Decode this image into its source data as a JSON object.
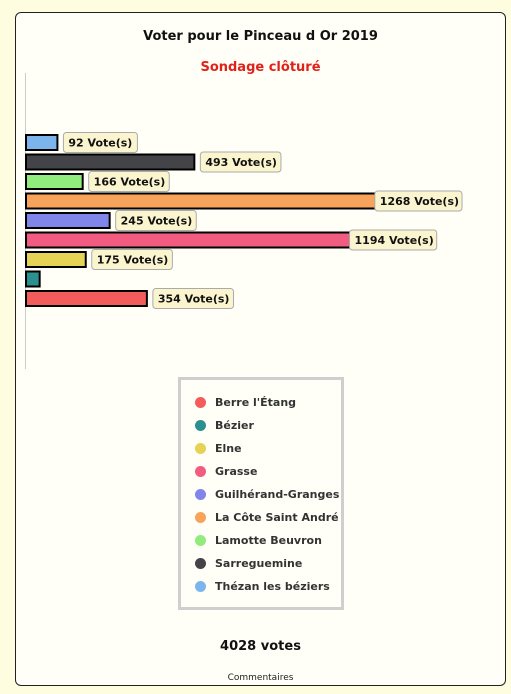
{
  "poll": {
    "title": "Voter pour le Pinceau d Or 2019",
    "status": "Sondage clôturé",
    "total": "4028 votes",
    "comments_link": "Commentaires"
  },
  "chart_data": {
    "type": "bar",
    "orientation": "horizontal",
    "categories": [
      "Thézan les béziers",
      "Sarreguemine",
      "Lamotte Beuvron",
      "La Côte Saint André",
      "Guilhérand-Granges",
      "Grasse",
      "Elne",
      "Bézier",
      "Berre l'Étang"
    ],
    "values": [
      92,
      493,
      166,
      1268,
      245,
      1194,
      175,
      40,
      354
    ],
    "value_labels": [
      "92 Vote(s)",
      "493 Vote(s)",
      "166 Vote(s)",
      "1268 Vote(s)",
      "245 Vote(s)",
      "1194 Vote(s)",
      "175 Vote(s)",
      "",
      "354 Vote(s)"
    ],
    "colors": [
      "#7cb5ec",
      "#434348",
      "#90ed7d",
      "#f7a35c",
      "#8085e9",
      "#f15c80",
      "#e4d354",
      "#2b908f",
      "#f45b5b"
    ],
    "xlim": [
      0,
      1268
    ],
    "legend_position": "bottom-center",
    "grid": false
  },
  "legend": [
    {
      "label": "Berre l'Étang",
      "color": "#f45b5b"
    },
    {
      "label": "Bézier",
      "color": "#2b908f"
    },
    {
      "label": "Elne",
      "color": "#e4d354"
    },
    {
      "label": "Grasse",
      "color": "#f15c80"
    },
    {
      "label": "Guilhérand-Granges",
      "color": "#8085e9"
    },
    {
      "label": "La Côte Saint André",
      "color": "#f7a35c"
    },
    {
      "label": "Lamotte Beuvron",
      "color": "#90ed7d"
    },
    {
      "label": "Sarreguemine",
      "color": "#434348"
    },
    {
      "label": "Thézan les béziers",
      "color": "#7cb5ec"
    }
  ]
}
